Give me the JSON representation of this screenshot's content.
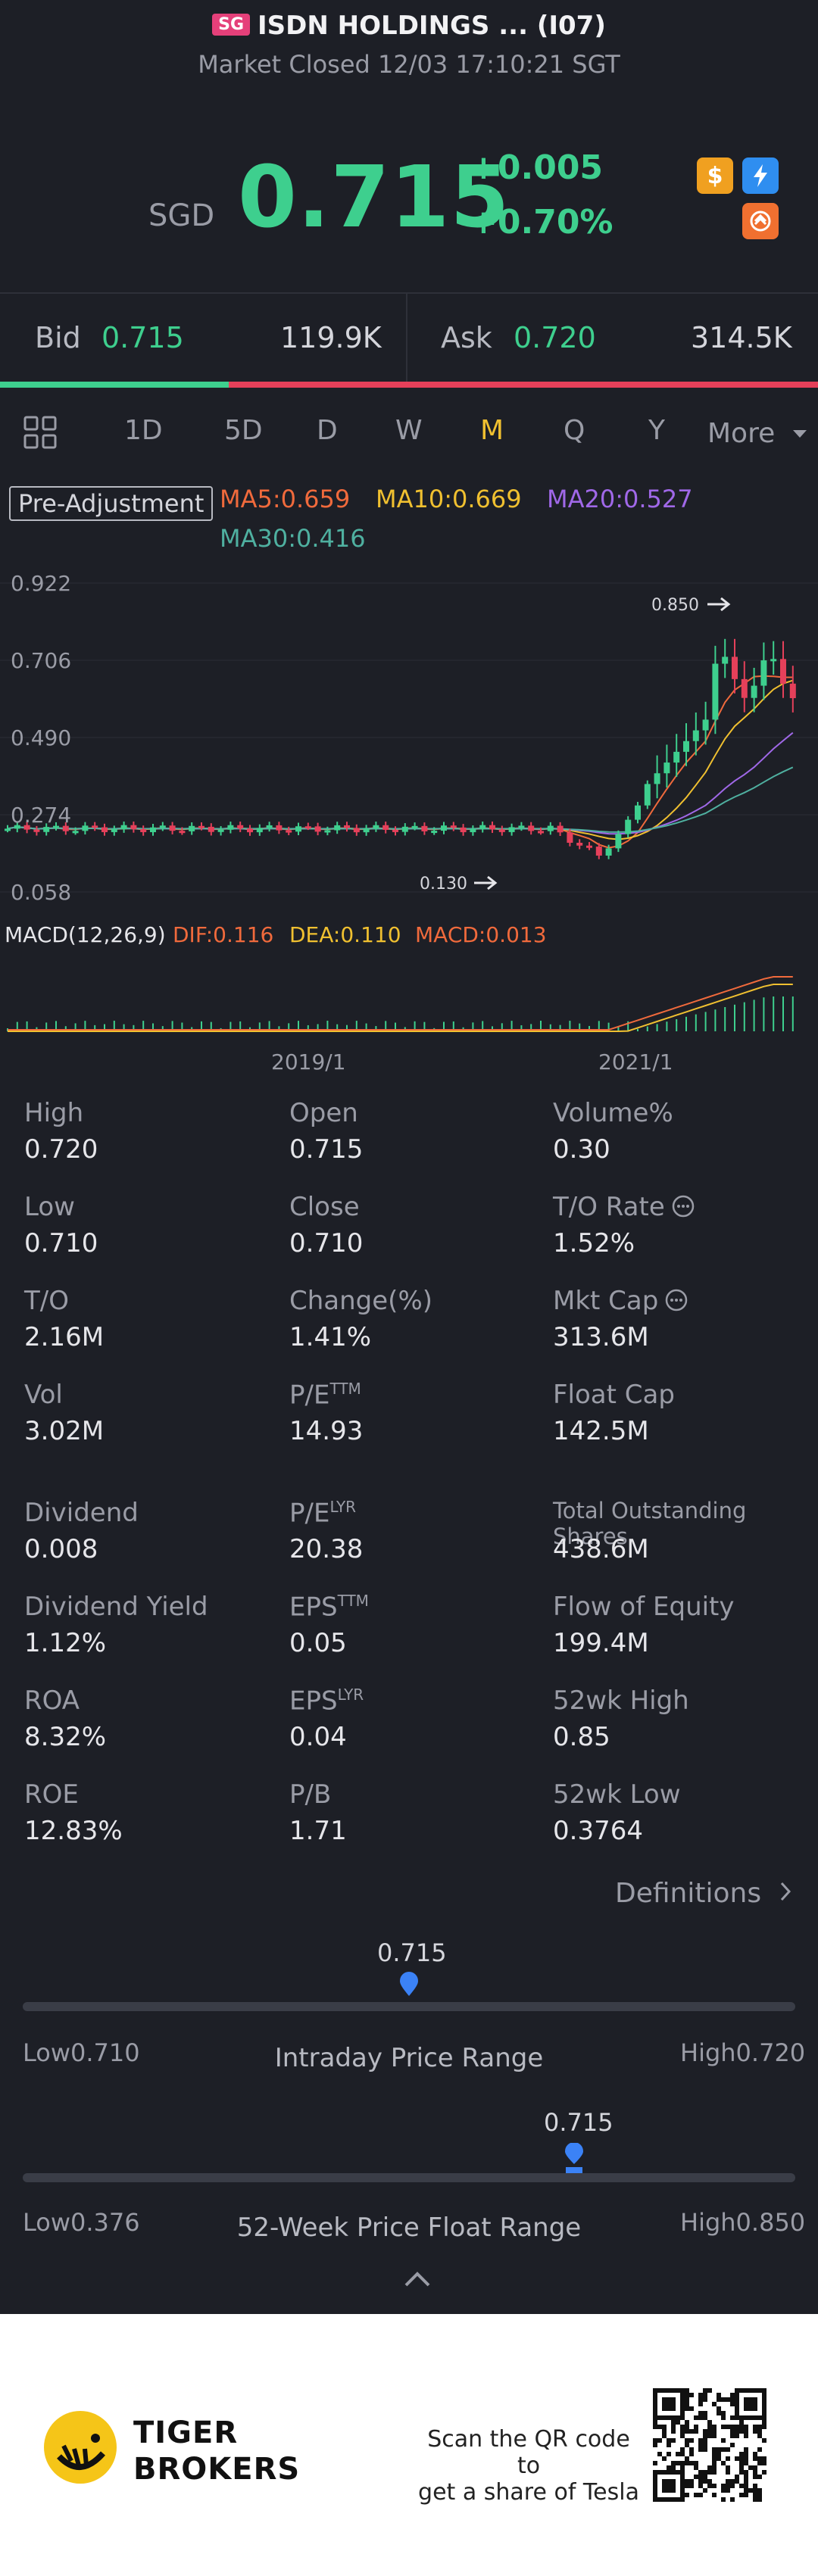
{
  "header": {
    "badge": "SG",
    "title": "ISDN HOLDINGS ... (I07)",
    "status": "Market Closed 12/03 17:10:21 SGT",
    "currency": "SGD",
    "price": "0.715",
    "change": "+0.005",
    "change_pct": "+0.70%",
    "icons": [
      "dollar-icon",
      "lightning-icon",
      "exchange-icon"
    ]
  },
  "bidask": {
    "bid_label": "Bid",
    "bid_price": "0.715",
    "bid_vol": "119.9K",
    "ask_label": "Ask",
    "ask_price": "0.720",
    "ask_vol": "314.5K",
    "bid_ratio": 0.28
  },
  "tabs": [
    "1D",
    "5D",
    "D",
    "W",
    "M",
    "Q",
    "Y",
    "More"
  ],
  "active_tab": "M",
  "indicators": {
    "pre_adjustment": "Pre-Adjustment",
    "ma5": "MA5:0.659",
    "ma10": "MA10:0.669",
    "ma20": "MA20:0.527",
    "ma30": "MA30:0.416",
    "macd": "MACD(12,26,9)",
    "dif": "DIF:0.116",
    "dea": "DEA:0.110",
    "macd_val": "MACD:0.013",
    "colors": {
      "ma5": "#f06a3c",
      "ma10": "#f0c030",
      "ma20": "#a068e8",
      "ma30": "#4fb0a0",
      "up": "#3ecf8e",
      "down": "#e5405a"
    }
  },
  "chart_data": {
    "type": "candlestick",
    "y_ticks": [
      "0.922",
      "0.706",
      "0.490",
      "0.274",
      "0.058"
    ],
    "x_ticks": [
      "2019/1",
      "2021/1"
    ],
    "annotations": {
      "high": "0.850",
      "low": "0.130"
    },
    "ylim": [
      0.058,
      0.922
    ]
  },
  "stats": [
    {
      "label": "High",
      "value": "0.720"
    },
    {
      "label": "Open",
      "value": "0.715"
    },
    {
      "label": "Volume%",
      "value": "0.30"
    },
    {
      "label": "Low",
      "value": "0.710"
    },
    {
      "label": "Close",
      "value": "0.710"
    },
    {
      "label": "T/O Rate",
      "value": "1.52%"
    },
    {
      "label": "T/O",
      "value": "2.16M"
    },
    {
      "label": "Change(%)",
      "value": "1.41%"
    },
    {
      "label": "Mkt Cap",
      "value": "313.6M"
    },
    {
      "label": "Vol",
      "value": "3.02M"
    },
    {
      "label": "P/E",
      "sup": "TTM",
      "value": "14.93"
    },
    {
      "label": "Float Cap",
      "value": "142.5M"
    },
    {
      "label": "Dividend",
      "value": "0.008"
    },
    {
      "label": "P/E",
      "sup": "LYR",
      "value": "20.38"
    },
    {
      "label": "Total Outstanding Shares",
      "value": "438.6M"
    },
    {
      "label": "Dividend Yield",
      "value": "1.12%"
    },
    {
      "label": "EPS",
      "sup": "TTM",
      "value": "0.05"
    },
    {
      "label": "Flow of Equity",
      "value": "199.4M"
    },
    {
      "label": "ROA",
      "value": "8.32%"
    },
    {
      "label": "EPS",
      "sup": "LYR",
      "value": "0.04"
    },
    {
      "label": "52wk High",
      "value": "0.85"
    },
    {
      "label": "ROE",
      "value": "12.83%"
    },
    {
      "label": "P/B",
      "value": "1.71"
    },
    {
      "label": "52wk Low",
      "value": "0.3764"
    }
  ],
  "definitions": "Definitions",
  "intraday": {
    "price": "0.715",
    "low_label": "Low",
    "low": "0.710",
    "high_label": "High",
    "high": "0.720",
    "title": "Intraday Price Range",
    "position": 0.5
  },
  "week52": {
    "price": "0.715",
    "low_label": "Low",
    "low": "0.376",
    "high_label": "High",
    "high": "0.850",
    "title": "52-Week Price Float Range",
    "position": 0.715
  },
  "footer": {
    "brand1": "TIGER",
    "brand2": "BROKERS",
    "qr_line1": "Scan the QR code to",
    "qr_line2": "get a share of Tesla"
  }
}
